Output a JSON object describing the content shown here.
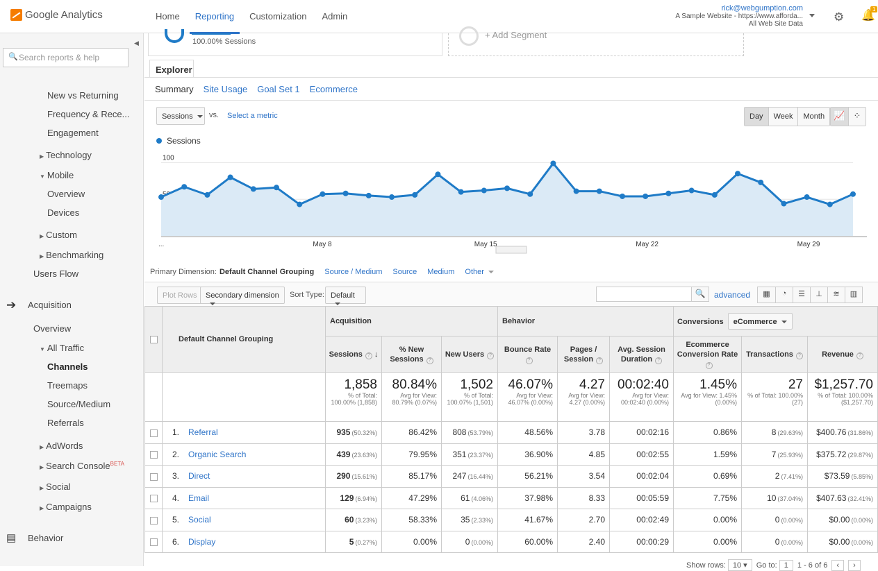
{
  "app": {
    "name": "Google Analytics"
  },
  "nav": [
    {
      "label": "Home"
    },
    {
      "label": "Reporting"
    },
    {
      "label": "Customization"
    },
    {
      "label": "Admin"
    }
  ],
  "account": {
    "email": "rick@webgumption.com",
    "property": "A Sample Website - https://www.afforda...",
    "view": "All Web Site Data",
    "notifications": "1"
  },
  "sidebar": {
    "search_placeholder": "Search reports & help",
    "items": [
      {
        "label": "New vs Returning"
      },
      {
        "label": "Frequency & Rece..."
      },
      {
        "label": "Engagement"
      },
      {
        "label": "Technology"
      },
      {
        "label": "Mobile"
      },
      {
        "label": "Overview"
      },
      {
        "label": "Devices"
      },
      {
        "label": "Custom"
      },
      {
        "label": "Benchmarking"
      },
      {
        "label": "Users Flow"
      },
      {
        "label": "Acquisition"
      },
      {
        "label": "Overview"
      },
      {
        "label": "All Traffic"
      },
      {
        "label": "Channels"
      },
      {
        "label": "Treemaps"
      },
      {
        "label": "Source/Medium"
      },
      {
        "label": "Referrals"
      },
      {
        "label": "AdWords"
      },
      {
        "label": "Search Console"
      },
      {
        "label": "Social"
      },
      {
        "label": "Campaigns"
      },
      {
        "label": "Behavior"
      }
    ],
    "beta": "BETA"
  },
  "segment": {
    "pct": "100.00% Sessions",
    "add": "+ Add Segment"
  },
  "explorer": {
    "tab": "Explorer",
    "subtabs": [
      "Summary",
      "Site Usage",
      "Goal Set 1",
      "Ecommerce"
    ],
    "metric": "Sessions",
    "vs": "vs.",
    "select_metric": "Select a metric",
    "periods": [
      "Day",
      "Week",
      "Month"
    ]
  },
  "chart_data": {
    "type": "area",
    "series": [
      {
        "name": "Sessions",
        "values": [
          53,
          67,
          56,
          80,
          64,
          66,
          43,
          57,
          58,
          55,
          53,
          56,
          84,
          60,
          62,
          65,
          57,
          99,
          61,
          61,
          54,
          54,
          58,
          62,
          56,
          85,
          73,
          44,
          53,
          43,
          57
        ]
      }
    ],
    "ylim": [
      0,
      125
    ],
    "yticks": [
      "100",
      "50"
    ],
    "xticks": [
      "...",
      "May 8",
      "May 15",
      "May 22",
      "May 29"
    ],
    "color": "#1f7bc7"
  },
  "dimension": {
    "label": "Primary Dimension:",
    "current": "Default Channel Grouping",
    "options": [
      "Source / Medium",
      "Source",
      "Medium",
      "Other"
    ]
  },
  "toolbar": {
    "plot_rows": "Plot Rows",
    "secondary": "Secondary dimension",
    "sort_type_label": "Sort Type:",
    "sort_type": "Default",
    "advanced": "advanced"
  },
  "table": {
    "dim_header": "Default Channel Grouping",
    "groups": {
      "acquisition": "Acquisition",
      "behavior": "Behavior",
      "conversions": "Conversions",
      "conv_select": "eCommerce"
    },
    "columns": [
      "Sessions",
      "% New Sessions",
      "New Users",
      "Bounce Rate",
      "Pages / Session",
      "Avg. Session Duration",
      "Ecommerce Conversion Rate",
      "Transactions",
      "Revenue"
    ],
    "totals": [
      {
        "big": "1,858",
        "sub": "% of Total: 100.00% (1,858)"
      },
      {
        "big": "80.84%",
        "sub": "Avg for View: 80.79% (0.07%)"
      },
      {
        "big": "1,502",
        "sub": "% of Total: 100.07% (1,501)"
      },
      {
        "big": "46.07%",
        "sub": "Avg for View: 46.07% (0.00%)"
      },
      {
        "big": "4.27",
        "sub": "Avg for View: 4.27 (0.00%)"
      },
      {
        "big": "00:02:40",
        "sub": "Avg for View: 00:02:40 (0.00%)"
      },
      {
        "big": "1.45%",
        "sub": "Avg for View: 1.45% (0.00%)"
      },
      {
        "big": "27",
        "sub": "% of Total: 100.00% (27)"
      },
      {
        "big": "$1,257.70",
        "sub": "% of Total: 100.00% ($1,257.70)"
      }
    ],
    "rows": [
      {
        "n": "1.",
        "name": "Referral",
        "sessions": "935",
        "sp": "(50.32%)",
        "newpct": "86.42%",
        "newusers": "808",
        "np": "(53.79%)",
        "bounce": "48.56%",
        "pages": "3.78",
        "dur": "00:02:16",
        "conv": "0.86%",
        "trans": "8",
        "tp": "(29.63%)",
        "rev": "$400.76",
        "rp": "(31.86%)"
      },
      {
        "n": "2.",
        "name": "Organic Search",
        "sessions": "439",
        "sp": "(23.63%)",
        "newpct": "79.95%",
        "newusers": "351",
        "np": "(23.37%)",
        "bounce": "36.90%",
        "pages": "4.85",
        "dur": "00:02:55",
        "conv": "1.59%",
        "trans": "7",
        "tp": "(25.93%)",
        "rev": "$375.72",
        "rp": "(29.87%)"
      },
      {
        "n": "3.",
        "name": "Direct",
        "sessions": "290",
        "sp": "(15.61%)",
        "newpct": "85.17%",
        "newusers": "247",
        "np": "(16.44%)",
        "bounce": "56.21%",
        "pages": "3.54",
        "dur": "00:02:04",
        "conv": "0.69%",
        "trans": "2",
        "tp": "(7.41%)",
        "rev": "$73.59",
        "rp": "(5.85%)"
      },
      {
        "n": "4.",
        "name": "Email",
        "sessions": "129",
        "sp": "(6.94%)",
        "newpct": "47.29%",
        "newusers": "61",
        "np": "(4.06%)",
        "bounce": "37.98%",
        "pages": "8.33",
        "dur": "00:05:59",
        "conv": "7.75%",
        "trans": "10",
        "tp": "(37.04%)",
        "rev": "$407.63",
        "rp": "(32.41%)"
      },
      {
        "n": "5.",
        "name": "Social",
        "sessions": "60",
        "sp": "(3.23%)",
        "newpct": "58.33%",
        "newusers": "35",
        "np": "(2.33%)",
        "bounce": "41.67%",
        "pages": "2.70",
        "dur": "00:02:49",
        "conv": "0.00%",
        "trans": "0",
        "tp": "(0.00%)",
        "rev": "$0.00",
        "rp": "(0.00%)"
      },
      {
        "n": "6.",
        "name": "Display",
        "sessions": "5",
        "sp": "(0.27%)",
        "newpct": "0.00%",
        "newusers": "0",
        "np": "(0.00%)",
        "bounce": "60.00%",
        "pages": "2.40",
        "dur": "00:00:29",
        "conv": "0.00%",
        "trans": "0",
        "tp": "(0.00%)",
        "rev": "$0.00",
        "rp": "(0.00%)"
      }
    ]
  },
  "pager": {
    "show_rows": "Show rows:",
    "rows": "10",
    "goto": "Go to:",
    "page": "1",
    "range": "1 - 6 of 6"
  }
}
